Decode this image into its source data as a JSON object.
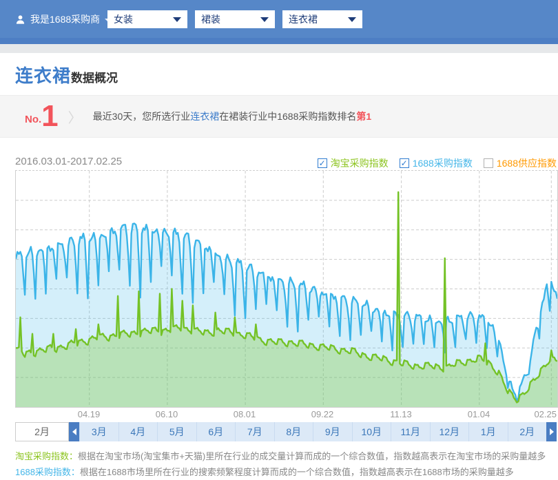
{
  "header": {
    "user_menu": "我是1688采购商",
    "filters": [
      "女装",
      "裙装",
      "连衣裙"
    ]
  },
  "page": {
    "title_highlight": "连衣裙",
    "title_sub": "数据概况"
  },
  "rank_banner": {
    "rank_prefix": "No.",
    "rank_number": "1",
    "chevron": "〉",
    "text_before": "最近30天，您所选行业",
    "text_keyword": "连衣裙",
    "text_middle": "在裙装行业中1688采购指数排名",
    "text_rank": "第1"
  },
  "chart": {
    "date_range": "2016.03.01-2017.02.25",
    "legend": [
      {
        "label": "淘宝采购指数",
        "color": "#8cc41f",
        "checked": true
      },
      {
        "label": "1688采购指数",
        "color": "#45b6e8",
        "checked": true
      },
      {
        "label": "1688供应指数",
        "color": "#ff9900",
        "checked": false
      }
    ],
    "x_ticks": [
      "04.19",
      "06.10",
      "08.01",
      "09.22",
      "11.13",
      "01.04",
      "02.25"
    ]
  },
  "chart_data": {
    "type": "area",
    "title": "连衣裙 采购指数趋势",
    "date_range": "2016.03.01-2017.02.25",
    "x_start": "2016.03.01",
    "x_end": "2017.02.25",
    "x_unit": "day",
    "x_range_days": 361,
    "x_tick_days": [
      49,
      101,
      153,
      205,
      257,
      309,
      357
    ],
    "x_tick_labels": [
      "04.19",
      "06.10",
      "08.01",
      "09.22",
      "11.13",
      "01.04",
      "02.25"
    ],
    "ylim": [
      0,
      100
    ],
    "y_axis_visible": false,
    "grid": true,
    "h_grid_divisions": 8,
    "legend_position": "top-right",
    "series": [
      {
        "name": "1688采购指数",
        "line_color": "#3bb4e8",
        "fill_color": "#3db6e8",
        "fill_opacity": 0.22,
        "peak_envelope": [
          [
            0,
            64
          ],
          [
            14,
            67
          ],
          [
            30,
            69
          ],
          [
            45,
            72
          ],
          [
            60,
            74
          ],
          [
            75,
            77
          ],
          [
            88,
            76
          ],
          [
            101,
            75
          ],
          [
            112,
            73
          ],
          [
            125,
            69
          ],
          [
            138,
            64
          ],
          [
            153,
            60
          ],
          [
            168,
            56
          ],
          [
            183,
            53
          ],
          [
            205,
            49
          ],
          [
            220,
            46
          ],
          [
            235,
            43
          ],
          [
            250,
            40
          ],
          [
            257,
            39
          ],
          [
            270,
            38
          ],
          [
            285,
            37
          ],
          [
            297,
            38
          ],
          [
            309,
            39
          ],
          [
            317,
            36
          ],
          [
            323,
            27
          ],
          [
            329,
            10
          ],
          [
            334,
            5
          ],
          [
            339,
            12
          ],
          [
            344,
            24
          ],
          [
            349,
            40
          ],
          [
            354,
            52
          ],
          [
            357,
            53
          ],
          [
            361,
            48
          ]
        ],
        "notch_depth": [
          [
            0,
            16
          ],
          [
            30,
            19
          ],
          [
            60,
            22
          ],
          [
            90,
            23
          ],
          [
            120,
            21
          ],
          [
            153,
            18
          ],
          [
            183,
            16
          ],
          [
            205,
            15
          ],
          [
            235,
            14
          ],
          [
            257,
            13
          ],
          [
            285,
            12
          ],
          [
            309,
            12
          ],
          [
            323,
            8
          ],
          [
            334,
            2
          ],
          [
            344,
            6
          ],
          [
            354,
            11
          ],
          [
            361,
            10
          ]
        ],
        "notch_profile": [
          0.08,
          0,
          0.02,
          0,
          0.12,
          0.5,
          1
        ],
        "depth_week_var": 0.25,
        "texture_amps": [
          1.3,
          0.7
        ]
      },
      {
        "name": "淘宝采购指数",
        "line_color": "#74c226",
        "fill_color": "#7cc62f",
        "fill_opacity": 0.32,
        "base_envelope": [
          [
            0,
            25
          ],
          [
            6,
            23
          ],
          [
            12,
            24
          ],
          [
            20,
            25
          ],
          [
            30,
            26
          ],
          [
            42,
            28
          ],
          [
            55,
            30
          ],
          [
            68,
            31
          ],
          [
            80,
            32
          ],
          [
            92,
            33
          ],
          [
            101,
            33
          ],
          [
            110,
            34
          ],
          [
            118,
            33
          ],
          [
            127,
            32
          ],
          [
            135,
            33
          ],
          [
            145,
            32
          ],
          [
            153,
            31
          ],
          [
            163,
            29
          ],
          [
            173,
            28
          ],
          [
            183,
            28
          ],
          [
            193,
            27
          ],
          [
            205,
            26
          ],
          [
            215,
            25
          ],
          [
            225,
            24
          ],
          [
            235,
            22
          ],
          [
            245,
            21
          ],
          [
            257,
            19
          ],
          [
            267,
            18
          ],
          [
            277,
            18
          ],
          [
            286,
            17
          ],
          [
            294,
            19
          ],
          [
            301,
            20
          ],
          [
            309,
            21
          ],
          [
            316,
            19
          ],
          [
            322,
            15
          ],
          [
            328,
            7
          ],
          [
            334,
            4
          ],
          [
            340,
            7
          ],
          [
            346,
            12
          ],
          [
            351,
            17
          ],
          [
            356,
            21
          ],
          [
            361,
            20
          ]
        ],
        "weekly_profile": [
          0,
          0.3,
          0.1,
          0.4,
          0.2,
          0.6,
          1
        ],
        "weekly_amp": 1.6,
        "texture_amps": [
          0.8,
          0.5
        ],
        "spikes": [
          [
            3,
            38
          ],
          [
            11,
            31
          ],
          [
            25,
            31
          ],
          [
            40,
            33
          ],
          [
            55,
            35
          ],
          [
            68,
            47
          ],
          [
            82,
            49
          ],
          [
            96,
            48
          ],
          [
            104,
            50
          ],
          [
            111,
            45
          ],
          [
            118,
            43
          ],
          [
            133,
            40
          ],
          [
            146,
            38
          ],
          [
            160,
            35
          ],
          [
            255,
            91
          ],
          [
            286,
            63
          ],
          [
            313,
            27
          ],
          [
            357,
            24
          ]
        ]
      },
      {
        "name": "1688供应指数",
        "color": "#ff9900",
        "visible": false
      }
    ]
  },
  "month_selector": {
    "selected": "2月",
    "months": [
      "3月",
      "4月",
      "5月",
      "6月",
      "7月",
      "8月",
      "9月",
      "10月",
      "11月",
      "12月",
      "1月",
      "2月"
    ]
  },
  "footnotes": [
    {
      "label": "淘宝采购指数：",
      "color": "#8cc41f",
      "text": "根据在淘宝市场(淘宝集市+天猫)里所在行业的成交量计算而成的一个综合数值，指数越高表示在淘宝市场的采购量越多"
    },
    {
      "label": "1688采购指数：",
      "color": "#45b6e8",
      "text": "根据在1688市场里所在行业的搜索频繁程度计算而成的一个综合数值，指数越高表示在1688市场的采购量越多"
    }
  ]
}
